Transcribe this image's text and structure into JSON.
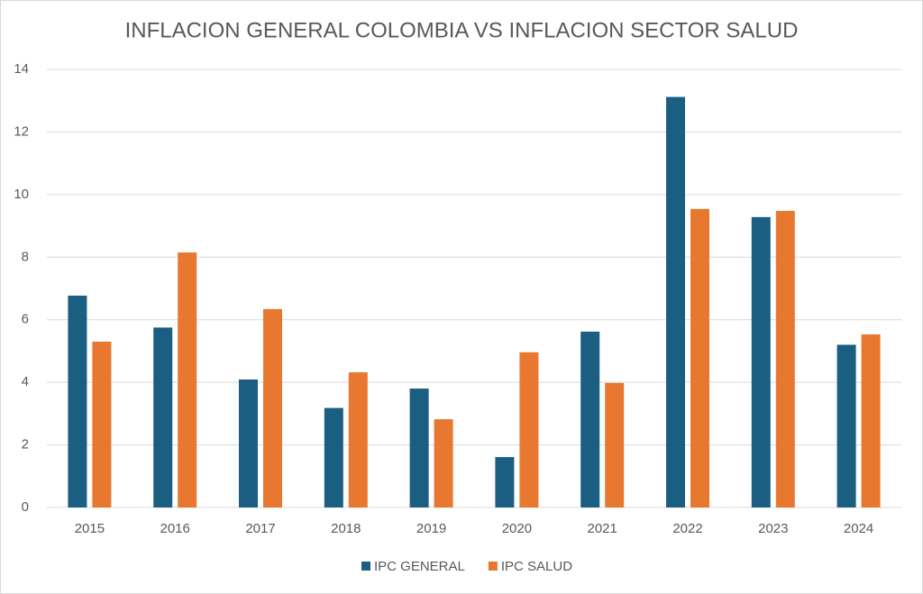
{
  "chart_data": {
    "type": "bar",
    "title": "INFLACION GENERAL COLOMBIA VS INFLACION SECTOR SALUD",
    "categories": [
      "2015",
      "2016",
      "2017",
      "2018",
      "2019",
      "2020",
      "2021",
      "2022",
      "2023",
      "2024"
    ],
    "series": [
      {
        "name": "IPC GENERAL",
        "color": "#1a5e82",
        "values": [
          6.77,
          5.75,
          4.09,
          3.18,
          3.8,
          1.61,
          5.62,
          13.12,
          9.28,
          5.2
        ]
      },
      {
        "name": "IPC SALUD",
        "color": "#e8782f",
        "values": [
          5.3,
          8.15,
          6.34,
          4.32,
          2.82,
          4.96,
          3.98,
          9.54,
          9.48,
          5.53
        ]
      }
    ],
    "ylim": [
      0,
      14
    ],
    "yticks": [
      0,
      2,
      4,
      6,
      8,
      10,
      12,
      14
    ],
    "grid": true,
    "legend": "bottom"
  }
}
